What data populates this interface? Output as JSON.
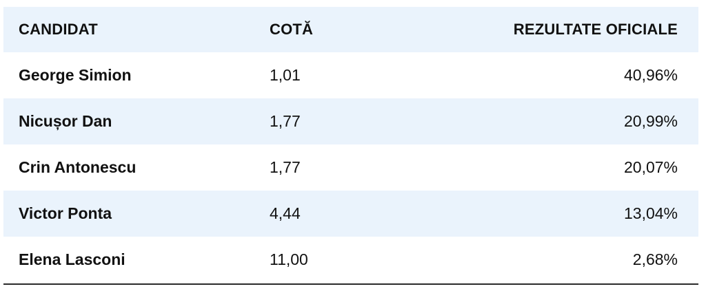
{
  "table": {
    "headers": {
      "candidate": "CANDIDAT",
      "odds": "COTĂ",
      "results": "REZULTATE OFICIALE"
    },
    "rows": [
      {
        "candidate": "George Simion",
        "odds": "1,01",
        "result": "40,96%"
      },
      {
        "candidate": "Nicușor Dan",
        "odds": "1,77",
        "result": "20,99%"
      },
      {
        "candidate": "Crin Antonescu",
        "odds": "1,77",
        "result": "20,07%"
      },
      {
        "candidate": "Victor Ponta",
        "odds": "4,44",
        "result": "13,04%"
      },
      {
        "candidate": "Elena Lasconi",
        "odds": "11,00",
        "result": "2,68%"
      }
    ],
    "colors": {
      "stripe": "#eaf3fc",
      "text": "#111111",
      "rule": "#2a2a2a"
    }
  }
}
